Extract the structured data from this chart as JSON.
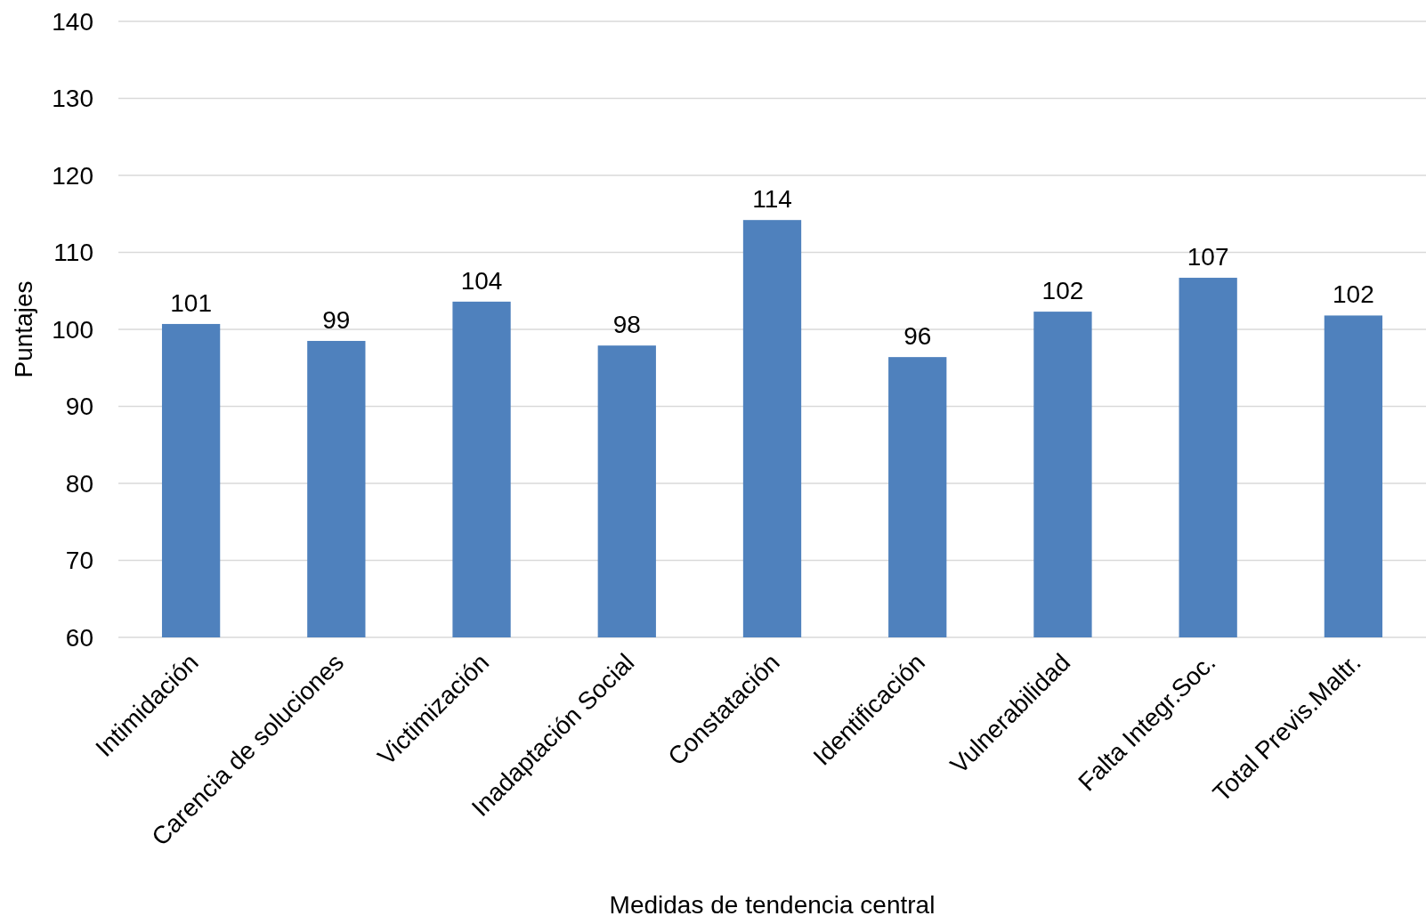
{
  "chart_data": {
    "type": "bar",
    "xlabel": "Medidas de tendencia central",
    "ylabel": "Puntajes",
    "categories": [
      "Intimidación",
      "Carencia de soluciones",
      "Victimización",
      "Inadaptación Social",
      "Constatación",
      "Identificación",
      "Vulnerabilidad",
      "Falta Integr.Soc.",
      "Total Previs.Maltr."
    ],
    "values": [
      100.7,
      98.5,
      103.6,
      97.9,
      114.2,
      96.4,
      102.3,
      106.7,
      101.8
    ],
    "value_labels": [
      "101",
      "99",
      "104",
      "98",
      "114",
      "96",
      "102",
      "107",
      "102"
    ],
    "color": "#4f81bd",
    "ylim": [
      60,
      140
    ],
    "yticks": [
      60,
      70,
      80,
      90,
      100,
      110,
      120,
      130,
      140
    ],
    "grid": "y"
  }
}
